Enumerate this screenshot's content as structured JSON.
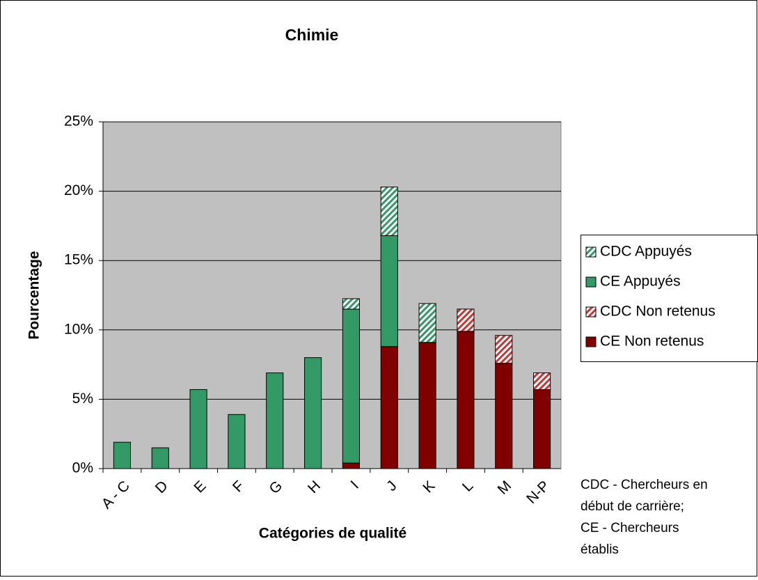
{
  "chart_data": {
    "type": "stacked_bar",
    "title": "Chimie",
    "x_label": "Catégories de qualité",
    "y_label": "Pourcentage",
    "categories": [
      "A - C",
      "D",
      "E",
      "F",
      "G",
      "H",
      "I",
      "J",
      "K",
      "L",
      "M",
      "N-P"
    ],
    "series": [
      {
        "name": "CE Non retenus",
        "color": "#800000",
        "hatched": false,
        "values": [
          null,
          null,
          null,
          null,
          null,
          null,
          0.4,
          8.8,
          9.1,
          9.9,
          7.6,
          5.7
        ]
      },
      {
        "name": "CDC Non retenus",
        "color": "#cc3333",
        "hatched": true,
        "values": [
          null,
          null,
          null,
          null,
          null,
          null,
          null,
          null,
          null,
          1.6,
          2.0,
          1.2
        ]
      },
      {
        "name": "CE Appuyés",
        "color": "#339966",
        "hatched": false,
        "values": [
          1.9,
          1.5,
          5.7,
          3.9,
          6.9,
          8.0,
          11.1,
          8.0,
          null,
          null,
          null,
          null
        ]
      },
      {
        "name": "CDC Appuyés",
        "color": "#339966",
        "hatched": true,
        "values": [
          null,
          null,
          null,
          null,
          null,
          null,
          0.75,
          3.5,
          2.8,
          null,
          null,
          null
        ]
      }
    ],
    "ylim": [
      0,
      25
    ],
    "yticks": [
      {
        "value": 0,
        "label": "0%"
      },
      {
        "value": 5,
        "label": "5%"
      },
      {
        "value": 10,
        "label": "10%"
      },
      {
        "value": 15,
        "label": "15%"
      },
      {
        "value": 20,
        "label": "20%"
      },
      {
        "value": 25,
        "label": "25%"
      }
    ],
    "grid": true,
    "plot_background": "#c0c0c0",
    "legend_order": [
      3,
      2,
      1,
      0
    ],
    "note": [
      "CDC - Chercheurs en",
      "début de carrière;",
      "CE - Chercheurs",
      "établis"
    ]
  }
}
